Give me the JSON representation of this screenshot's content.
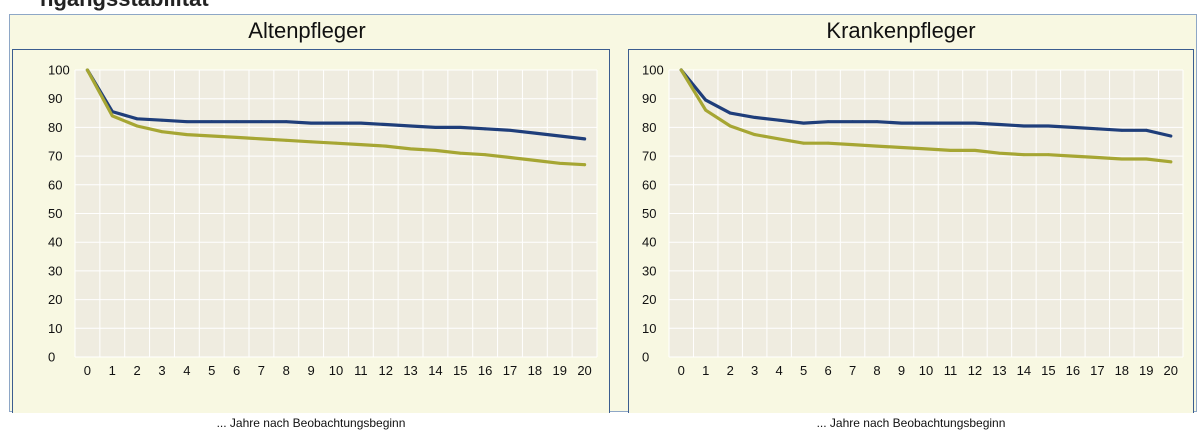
{
  "header_fragment": "ngangsstabilität",
  "colors": {
    "series_blue": "#1f3e7a",
    "series_olive": "#a6a633",
    "plot_bg": "#efece0",
    "grid": "#ffffff",
    "frame_bg": "#f8f8e2",
    "border": "#3b5d8f"
  },
  "chart_data": [
    {
      "type": "line",
      "title": "Altenpfleger",
      "xlabel": "... Jahre nach Beobachtungsbeginn",
      "ylabel": "",
      "x": [
        0,
        1,
        2,
        3,
        4,
        5,
        6,
        7,
        8,
        9,
        10,
        11,
        12,
        13,
        14,
        15,
        16,
        17,
        18,
        19,
        20
      ],
      "ylim": [
        0,
        100
      ],
      "yticks": [
        0,
        10,
        20,
        30,
        40,
        50,
        60,
        70,
        80,
        90,
        100
      ],
      "grid": true,
      "series": [
        {
          "color": "#1f3e7a",
          "values": [
            100,
            85.5,
            83,
            82.5,
            82,
            82,
            82,
            82,
            82,
            81.5,
            81.5,
            81.5,
            81,
            80.5,
            80,
            80,
            79.5,
            79,
            78,
            77,
            76
          ]
        },
        {
          "color": "#a6a633",
          "values": [
            100,
            84,
            80.5,
            78.5,
            77.5,
            77,
            76.5,
            76,
            75.5,
            75,
            74.5,
            74,
            73.5,
            72.5,
            72,
            71,
            70.5,
            69.5,
            68.5,
            67.5,
            67
          ]
        }
      ]
    },
    {
      "type": "line",
      "title": "Krankenpfleger",
      "xlabel": "... Jahre nach Beobachtungsbeginn",
      "ylabel": "",
      "x": [
        0,
        1,
        2,
        3,
        4,
        5,
        6,
        7,
        8,
        9,
        10,
        11,
        12,
        13,
        14,
        15,
        16,
        17,
        18,
        19,
        20
      ],
      "ylim": [
        0,
        100
      ],
      "yticks": [
        0,
        10,
        20,
        30,
        40,
        50,
        60,
        70,
        80,
        90,
        100
      ],
      "grid": true,
      "series": [
        {
          "color": "#1f3e7a",
          "values": [
            100,
            89.5,
            85,
            83.5,
            82.5,
            81.5,
            82,
            82,
            82,
            81.5,
            81.5,
            81.5,
            81.5,
            81,
            80.5,
            80.5,
            80,
            79.5,
            79,
            79,
            77
          ]
        },
        {
          "color": "#a6a633",
          "values": [
            100,
            86,
            80.5,
            77.5,
            76,
            74.5,
            74.5,
            74,
            73.5,
            73,
            72.5,
            72,
            72,
            71,
            70.5,
            70.5,
            70,
            69.5,
            69,
            69,
            68
          ]
        }
      ]
    }
  ]
}
